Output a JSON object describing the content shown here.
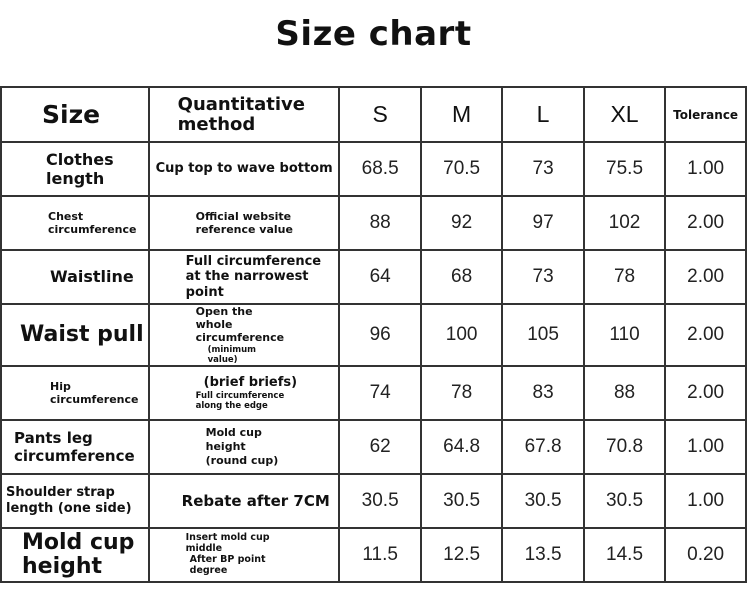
{
  "title": "Size chart",
  "headers": {
    "size": "Size",
    "method": "Quantitative method",
    "sizes": [
      "S",
      "M",
      "L",
      "XL"
    ],
    "tolerance": "Tolerance"
  },
  "rows": [
    {
      "name": "Clothes length",
      "method": [
        "Cup top to wave bottom"
      ],
      "values": [
        "68.5",
        "70.5",
        "73",
        "75.5"
      ],
      "tolerance": "1.00"
    },
    {
      "name": "Chest circumference",
      "method": [
        "Official website reference value"
      ],
      "values": [
        "88",
        "92",
        "97",
        "102"
      ],
      "tolerance": "2.00"
    },
    {
      "name": "Waistline",
      "method": [
        "Full circumference at the narrowest point"
      ],
      "values": [
        "64",
        "68",
        "73",
        "78"
      ],
      "tolerance": "2.00"
    },
    {
      "name": "Waist pull",
      "method": [
        "Open the whole circumference",
        "(minimum value)"
      ],
      "values": [
        "96",
        "100",
        "105",
        "110"
      ],
      "tolerance": "2.00"
    },
    {
      "name": "Hip circumference",
      "method": [
        "(brief briefs)",
        "Full circumference along the edge"
      ],
      "values": [
        "74",
        "78",
        "83",
        "88"
      ],
      "tolerance": "2.00"
    },
    {
      "name": "Pants leg circumference",
      "method": [
        "Mold cup height (round cup)"
      ],
      "values": [
        "62",
        "64.8",
        "67.8",
        "70.8"
      ],
      "tolerance": "1.00"
    },
    {
      "name": "Shoulder strap length (one side)",
      "method": [
        "Rebate after 7CM"
      ],
      "values": [
        "30.5",
        "30.5",
        "30.5",
        "30.5"
      ],
      "tolerance": "1.00"
    },
    {
      "name": "Mold cup height",
      "method": [
        "Insert mold cup middle",
        "After BP point degree"
      ],
      "values": [
        "11.5",
        "12.5",
        "13.5",
        "14.5"
      ],
      "tolerance": "0.20"
    }
  ]
}
